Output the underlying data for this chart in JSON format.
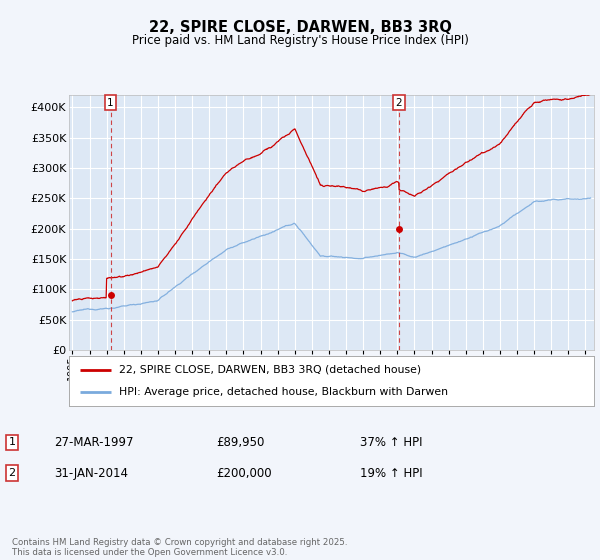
{
  "title": "22, SPIRE CLOSE, DARWEN, BB3 3RQ",
  "subtitle": "Price paid vs. HM Land Registry's House Price Index (HPI)",
  "ylim": [
    0,
    420000
  ],
  "yticks": [
    0,
    50000,
    100000,
    150000,
    200000,
    250000,
    300000,
    350000,
    400000
  ],
  "ytick_labels": [
    "£0",
    "£50K",
    "£100K",
    "£150K",
    "£200K",
    "£250K",
    "£300K",
    "£350K",
    "£400K"
  ],
  "background_color": "#f2f5fb",
  "plot_bg": "#dde8f5",
  "grid_color": "#ffffff",
  "red_line_color": "#cc0000",
  "blue_line_color": "#7aaadd",
  "vline_color": "#cc3333",
  "annotation_box_color": "#cc3333",
  "legend_label_red": "22, SPIRE CLOSE, DARWEN, BB3 3RQ (detached house)",
  "legend_label_blue": "HPI: Average price, detached house, Blackburn with Darwen",
  "point1_date": "27-MAR-1997",
  "point1_price": "£89,950",
  "point1_hpi": "37% ↑ HPI",
  "point1_year": 1997.23,
  "point1_value": 89950,
  "point2_date": "31-JAN-2014",
  "point2_price": "£200,000",
  "point2_hpi": "19% ↑ HPI",
  "point2_year": 2014.08,
  "point2_value": 200000,
  "footer": "Contains HM Land Registry data © Crown copyright and database right 2025.\nThis data is licensed under the Open Government Licence v3.0.",
  "xlim_start": 1994.8,
  "xlim_end": 2025.5
}
